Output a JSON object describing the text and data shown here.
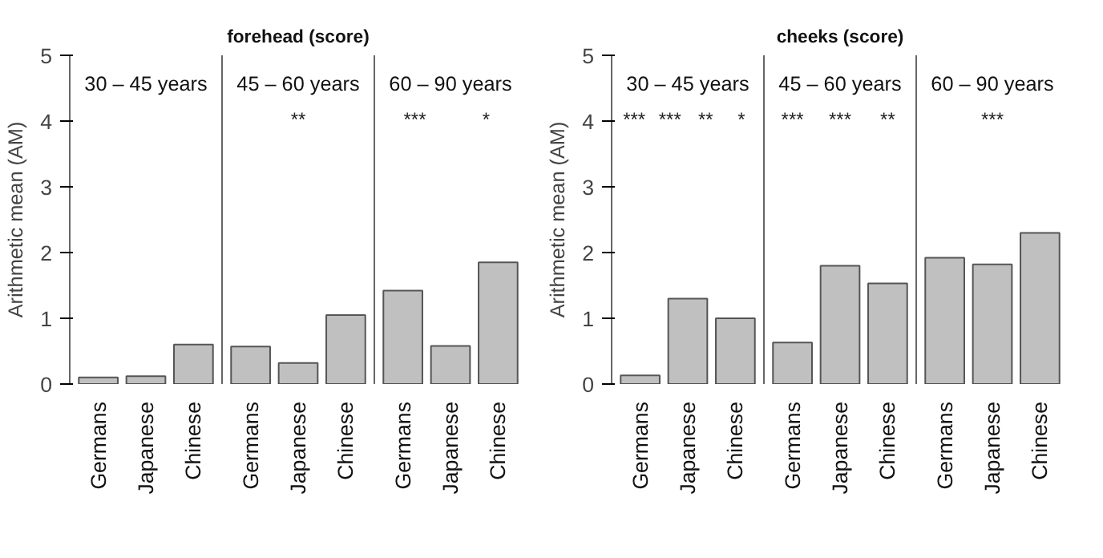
{
  "chart_data": [
    {
      "type": "bar",
      "categories": [
        "Germans",
        "Japanese",
        "Chinese"
      ],
      "values": [
        0.1,
        0.12,
        0.6
      ],
      "color": "#c0c0c0",
      "ylabel": "Arithmetic mean (AM)",
      "ylim": [
        0,
        5
      ],
      "yticks": [
        0,
        1,
        2,
        3,
        4,
        5
      ],
      "grid": false,
      "tick_labels": true,
      "annotations": [
        "30 – 45 years"
      ]
    },
    {
      "type": "bar",
      "title": "forehead (score)",
      "categories": [
        "Germans",
        "Japanese",
        "Chinese"
      ],
      "values": [
        0.57,
        0.32,
        1.05
      ],
      "color": "#c0c0c0",
      "ylim": [
        0,
        5
      ],
      "yticks": [
        0,
        1,
        2,
        3,
        4,
        5
      ],
      "grid": false,
      "tick_labels": "x",
      "annotations": [
        "45 – 60 years",
        "**"
      ]
    },
    {
      "type": "bar",
      "categories": [
        "Germans",
        "Japanese",
        "Chinese"
      ],
      "values": [
        1.42,
        0.58,
        1.85
      ],
      "color": "#c0c0c0",
      "ylim": [
        0,
        5
      ],
      "yticks": [
        0,
        1,
        2,
        3,
        4,
        5
      ],
      "grid": false,
      "tick_labels": "x",
      "annotations": [
        "60 – 90 years",
        "***",
        "*"
      ]
    },
    {
      "type": "bar",
      "categories": [
        "Germans",
        "Japanese",
        "Chinese"
      ],
      "values": [
        0.13,
        1.3,
        1.0
      ],
      "color": "#c0c0c0",
      "ylabel": "Arithmetic mean (AM)",
      "ylim": [
        0,
        5
      ],
      "yticks": [
        0,
        1,
        2,
        3,
        4,
        5
      ],
      "grid": false,
      "tick_labels": true,
      "annotations": [
        "30 – 45 years",
        "***",
        "***",
        "**",
        "*"
      ]
    },
    {
      "type": "bar",
      "title": "cheeks (score)",
      "categories": [
        "Germans",
        "Japanese",
        "Chinese"
      ],
      "values": [
        0.63,
        1.8,
        1.53
      ],
      "color": "#c0c0c0",
      "ylim": [
        0,
        5
      ],
      "yticks": [
        0,
        1,
        2,
        3,
        4,
        5
      ],
      "grid": false,
      "tick_labels": "x",
      "annotations": [
        "45 – 60 years",
        "***",
        "***",
        "**"
      ]
    },
    {
      "type": "bar",
      "categories": [
        "Germans",
        "Japanese",
        "Chinese"
      ],
      "values": [
        1.92,
        1.82,
        2.3
      ],
      "color": "#c0c0c0",
      "ylim": [
        0,
        5
      ],
      "yticks": [
        0,
        1,
        2,
        3,
        4,
        5
      ],
      "grid": false,
      "tick_labels": "x",
      "annotations": [
        "60 – 90 years",
        "***"
      ]
    }
  ]
}
